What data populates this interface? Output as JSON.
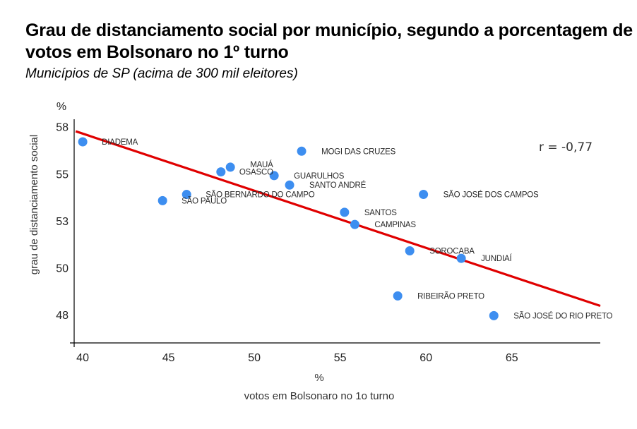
{
  "title": "Grau de distanciamento social por município, segundo a porcentagem de votos em Bolsonaro no 1º turno",
  "subtitle": "Municípios de SP (acima de 300 mil eleitores)",
  "chart_data": {
    "type": "scatter",
    "title": "Grau de distanciamento social por município, segundo a porcentagem de votos em Bolsonaro no 1º turno",
    "subtitle": "Municípios de SP (acima de 300 mil eleitores)",
    "xlabel": "votos em Bolsonaro no 1o turno",
    "xunit": "%",
    "ylabel": "grau de distanciamento social",
    "yunit": "%",
    "xlim": [
      39.75,
      70.4
    ],
    "ylim": [
      46.0,
      57.9
    ],
    "xticks": [
      40,
      45,
      50,
      55,
      60,
      65
    ],
    "xtick_labels": [
      "40",
      "45",
      "50",
      "55",
      "60",
      "65"
    ],
    "yticks": [
      57.5,
      55,
      52.5,
      50,
      47.5
    ],
    "ytick_labels": [
      "58",
      "55",
      "53",
      "50",
      "48"
    ],
    "grid": false,
    "annotation": "r = -0,77",
    "point_color": "#3d8ef0",
    "trendline_color": "#e00000",
    "trendline": {
      "x": [
        39.84,
        70.4
      ],
      "y": [
        57.26,
        47.97
      ]
    },
    "points": [
      {
        "label": "DIADEMA",
        "x": 40.25,
        "y": 56.7
      },
      {
        "label": "SÃO PAULO",
        "x": 44.9,
        "y": 53.57
      },
      {
        "label": "SÃO BERNARDO DO CAMPO",
        "x": 46.3,
        "y": 53.9
      },
      {
        "label": "OSASCO",
        "x": 48.3,
        "y": 55.1
      },
      {
        "label": "MAUÁ",
        "x": 48.85,
        "y": 55.35
      },
      {
        "label": "GUARULHOS",
        "x": 51.4,
        "y": 54.9
      },
      {
        "label": "SANTO ANDRÉ",
        "x": 52.3,
        "y": 54.4
      },
      {
        "label": "MOGI DAS CRUZES",
        "x": 53.0,
        "y": 56.2
      },
      {
        "label": "SANTOS",
        "x": 55.5,
        "y": 52.95
      },
      {
        "label": "CAMPINAS",
        "x": 56.1,
        "y": 52.3
      },
      {
        "label": "SÃO JOSÉ DOS CAMPOS",
        "x": 60.1,
        "y": 53.9
      },
      {
        "label": "SOROCABA",
        "x": 59.3,
        "y": 50.9
      },
      {
        "label": "JUNDIAÍ",
        "x": 62.3,
        "y": 50.5
      },
      {
        "label": "RIBEIRÃO PRETO",
        "x": 58.6,
        "y": 48.5
      },
      {
        "label": "SÃO JOSÉ DO RIO PRETO",
        "x": 64.2,
        "y": 47.45
      }
    ]
  }
}
